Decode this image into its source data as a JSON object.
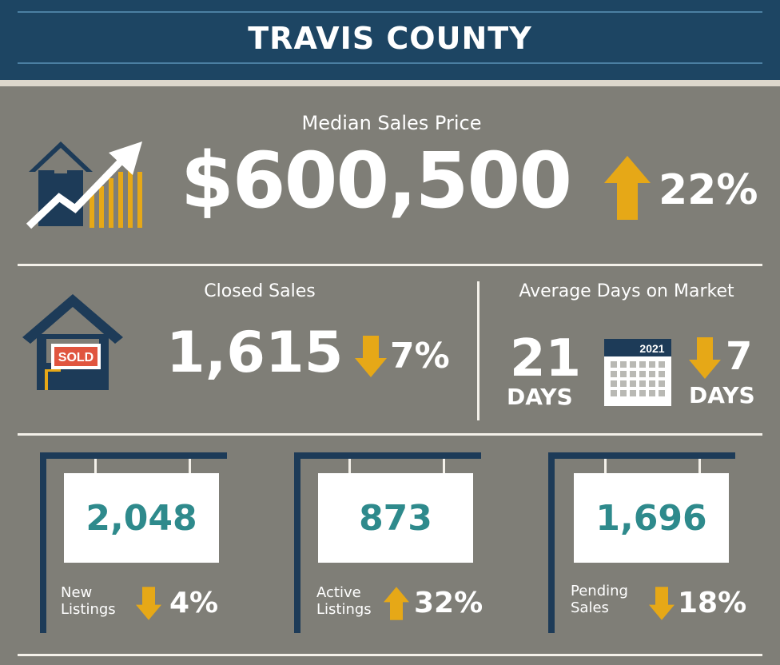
{
  "header": {
    "title": "TRAVIS COUNTY"
  },
  "median": {
    "label": "Median Sales Price",
    "value": "$600,500",
    "change": "22%",
    "direction": "up",
    "icon": "house-growth-chart-icon"
  },
  "closed": {
    "label": "Closed Sales",
    "value": "1,615",
    "change": "7%",
    "direction": "down",
    "icon": "sold-house-icon",
    "sign_text": "SOLD"
  },
  "dom": {
    "label": "Average Days on Market",
    "value": "21",
    "unit": "DAYS",
    "calendar_year": "2021",
    "change": "7",
    "change_unit": "DAYS",
    "direction": "down",
    "icon": "calendar-icon"
  },
  "stats": [
    {
      "value": "2,048",
      "label_line1": "New",
      "label_line2": "Listings",
      "change": "4%",
      "direction": "down"
    },
    {
      "value": "873",
      "label_line1": "Active",
      "label_line2": "Listings",
      "change": "32%",
      "direction": "up"
    },
    {
      "value": "1,696",
      "label_line1": "Pending",
      "label_line2": "Sales",
      "change": "18%",
      "direction": "down"
    }
  ],
  "colors": {
    "navy": "#1d4563",
    "background": "#7f7e77",
    "gold": "#e6a817",
    "teal": "#2e8a8c",
    "red": "#e0553f"
  }
}
